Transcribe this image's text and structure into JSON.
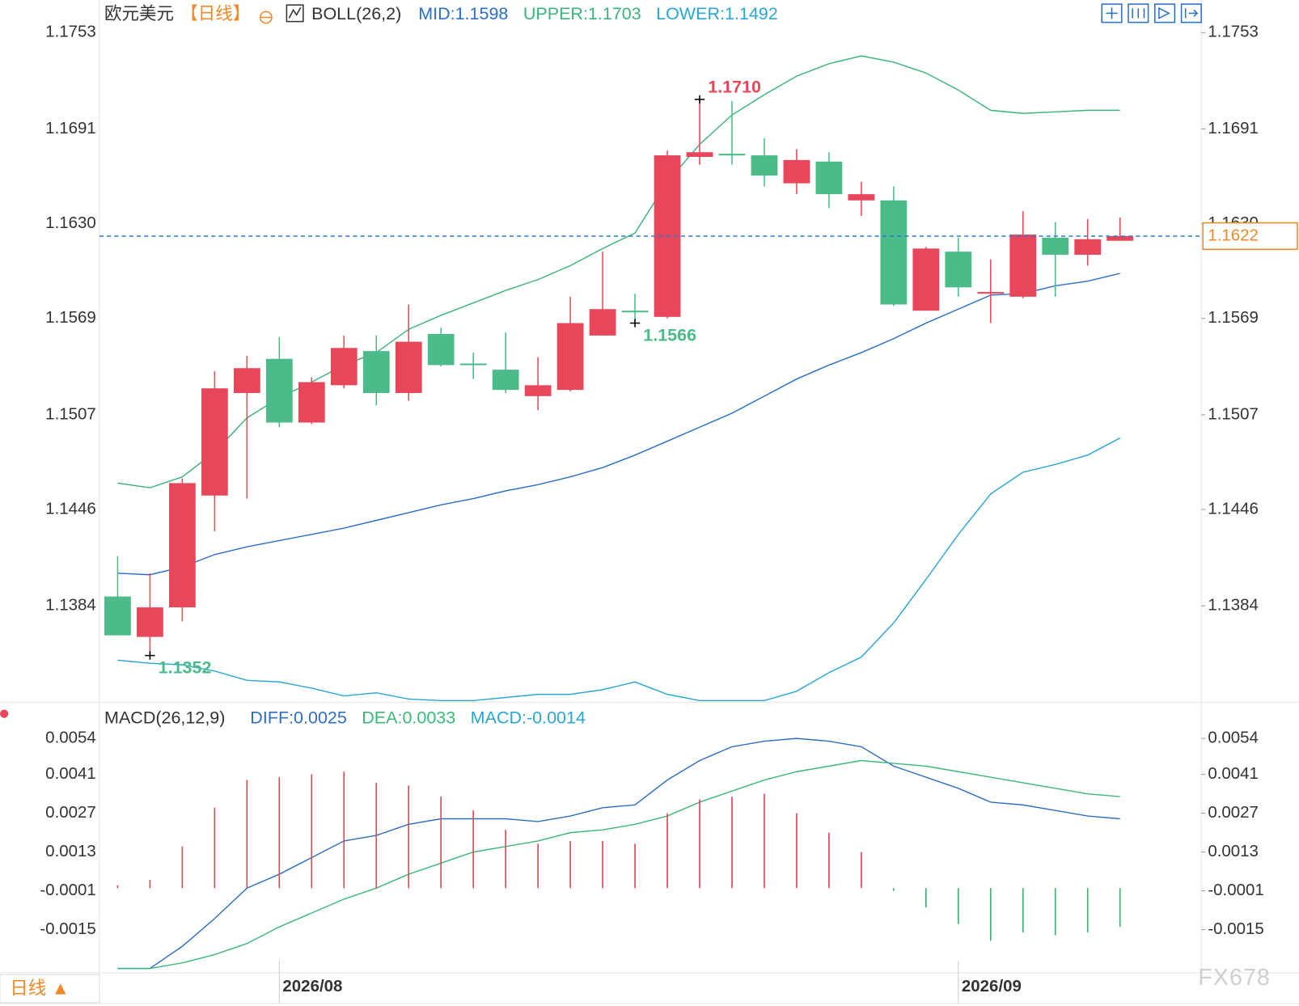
{
  "chart_data": [
    {
      "type": "candlestick",
      "title": "欧元美元",
      "period": "【日线】",
      "indicator": "BOLL(26,2)",
      "up_color": "#e8475b",
      "down_color": "#4cbb8a",
      "open": [
        1.139,
        1.1364,
        1.1383,
        1.1455,
        1.1521,
        1.1543,
        1.1502,
        1.1526,
        1.1548,
        1.1521,
        1.1559,
        1.154,
        1.1536,
        1.1519,
        1.1523,
        1.1558,
        1.1574,
        1.157,
        1.1673,
        1.1675,
        1.1674,
        1.1656,
        1.167,
        1.1645,
        1.1645,
        1.1574,
        1.1612,
        1.1585,
        1.1583,
        1.1621,
        1.161,
        1.1619
      ],
      "high": [
        1.1416,
        1.1405,
        1.1466,
        1.1535,
        1.1545,
        1.1557,
        1.1531,
        1.1558,
        1.1558,
        1.1578,
        1.1563,
        1.1547,
        1.156,
        1.1544,
        1.1583,
        1.1612,
        1.1585,
        1.1677,
        1.171,
        1.1709,
        1.1685,
        1.1678,
        1.1676,
        1.1657,
        1.1654,
        1.1615,
        1.1621,
        1.1607,
        1.1638,
        1.1631,
        1.1633,
        1.1634
      ],
      "low": [
        1.1365,
        1.1352,
        1.1374,
        1.1432,
        1.1453,
        1.1499,
        1.1501,
        1.1524,
        1.1513,
        1.1516,
        1.1538,
        1.153,
        1.1521,
        1.151,
        1.1522,
        1.1558,
        1.1566,
        1.1569,
        1.1668,
        1.1668,
        1.1654,
        1.1649,
        1.164,
        1.1635,
        1.1577,
        1.1574,
        1.1583,
        1.1566,
        1.1582,
        1.1583,
        1.1603,
        1.1619
      ],
      "close": [
        1.1365,
        1.1383,
        1.1463,
        1.1524,
        1.1537,
        1.1502,
        1.1528,
        1.155,
        1.1521,
        1.1554,
        1.1539,
        1.1539,
        1.1523,
        1.1526,
        1.1566,
        1.1575,
        1.1573,
        1.1674,
        1.1676,
        1.1674,
        1.1661,
        1.1671,
        1.1649,
        1.1649,
        1.1578,
        1.1614,
        1.1589,
        1.1586,
        1.1623,
        1.161,
        1.162,
        1.1622
      ],
      "series": [
        {
          "label": "MID:1.1598",
          "color": "#2a6fc9",
          "values": [
            1.1405,
            1.1404,
            1.1409,
            1.1417,
            1.1422,
            1.1426,
            1.143,
            1.1434,
            1.1439,
            1.1444,
            1.1449,
            1.1453,
            1.1458,
            1.1462,
            1.1467,
            1.1473,
            1.1481,
            1.149,
            1.1499,
            1.1508,
            1.1519,
            1.153,
            1.1539,
            1.1547,
            1.1556,
            1.1566,
            1.1575,
            1.1584,
            1.1585,
            1.159,
            1.1593,
            1.1598
          ]
        },
        {
          "label": "UPPER:1.1703",
          "color": "#3bb37a",
          "values": [
            1.1463,
            1.146,
            1.1467,
            1.1483,
            1.1505,
            1.1518,
            1.1528,
            1.1539,
            1.1547,
            1.1562,
            1.1571,
            1.1579,
            1.1587,
            1.1594,
            1.1603,
            1.1614,
            1.1624,
            1.1657,
            1.1681,
            1.17,
            1.1713,
            1.1725,
            1.1733,
            1.1738,
            1.1734,
            1.1727,
            1.1716,
            1.1703,
            1.1701,
            1.1702,
            1.1703,
            1.1703
          ]
        },
        {
          "label": "LOWER:1.1492",
          "color": "#2aa6d6",
          "values": [
            1.1349,
            1.1347,
            1.1346,
            1.1342,
            1.1336,
            1.1335,
            1.1331,
            1.1326,
            1.1328,
            1.1324,
            1.1323,
            1.1323,
            1.1325,
            1.1327,
            1.1327,
            1.133,
            1.1335,
            1.1327,
            1.1323,
            1.1323,
            1.1323,
            1.1329,
            1.1341,
            1.1351,
            1.1373,
            1.1401,
            1.143,
            1.1456,
            1.147,
            1.1475,
            1.1481,
            1.1492
          ]
        }
      ],
      "annotations": [
        {
          "value": 1.171,
          "label": "1.1710"
        },
        {
          "value": 1.1352,
          "label": "1.1352"
        },
        {
          "value": 1.1566,
          "label": "1.1566"
        }
      ],
      "last_price": {
        "value": 1.1622,
        "label": "1.1622",
        "color": "#f0892a"
      },
      "ylim": [
        1.1322,
        1.1774
      ],
      "yticks": [
        1.1753,
        1.1691,
        {
          "value": 1.163,
          "label": "1.1630"
        },
        1.1569,
        1.1507,
        1.1446,
        1.1384
      ]
    },
    {
      "type": "macd",
      "title": "MACD(26,12,9)",
      "categories": [
        null,
        null,
        null,
        null,
        null,
        "2026/08",
        null,
        null,
        null,
        null,
        null,
        null,
        null,
        null,
        null,
        null,
        null,
        null,
        null,
        null,
        null,
        null,
        null,
        null,
        null,
        null,
        "2026/09",
        null,
        null,
        null,
        null,
        null
      ],
      "series": [
        {
          "label": "DIFF:0.0025",
          "color": "#2f6fc2",
          "values": [
            -0.0029,
            -0.0029,
            -0.0021,
            -0.0011,
            0.0,
            0.0005,
            0.0011,
            0.0017,
            0.0019,
            0.0023,
            0.0025,
            0.0025,
            0.0025,
            0.0024,
            0.0026,
            0.0029,
            0.003,
            0.0039,
            0.0046,
            0.0051,
            0.0053,
            0.0054,
            0.0053,
            0.0051,
            0.0044,
            0.004,
            0.0036,
            0.0031,
            0.003,
            0.0028,
            0.0026,
            0.0025
          ]
        },
        {
          "label": "DEA:0.0033",
          "color": "#3db87a",
          "values": [
            -0.0029,
            -0.0029,
            -0.0027,
            -0.0024,
            -0.002,
            -0.0014,
            -0.0009,
            -0.0004,
            0.0,
            0.0005,
            0.0009,
            0.0013,
            0.0015,
            0.0017,
            0.002,
            0.0021,
            0.0023,
            0.0026,
            0.0031,
            0.0035,
            0.0039,
            0.0042,
            0.0044,
            0.0046,
            0.0045,
            0.0044,
            0.0042,
            0.004,
            0.0038,
            0.0036,
            0.0034,
            0.0033
          ]
        },
        {
          "label": "MACD:-0.0014",
          "color": "#2aa6d6",
          "up_color": "#d9475b",
          "down_color": "#3fae73",
          "values": [
            0.0001,
            0.0003,
            0.0015,
            0.0029,
            0.0039,
            0.004,
            0.0041,
            0.0042,
            0.0038,
            0.0037,
            0.0033,
            0.0028,
            0.0021,
            0.0016,
            0.0017,
            0.0017,
            0.0016,
            0.0027,
            0.0032,
            0.0033,
            0.0034,
            0.0027,
            0.002,
            0.0013,
            -0.0001,
            -0.0007,
            -0.0013,
            -0.0019,
            -0.0016,
            -0.0017,
            -0.0016,
            -0.0014
          ]
        }
      ],
      "ylim": [
        -0.003,
        0.0065
      ],
      "yticks": [
        0.0054,
        0.0041,
        0.0027,
        0.0013,
        -0.0001,
        -0.0015
      ]
    }
  ],
  "footer": {
    "period": "日线 ▲",
    "watermark": "FX678"
  }
}
